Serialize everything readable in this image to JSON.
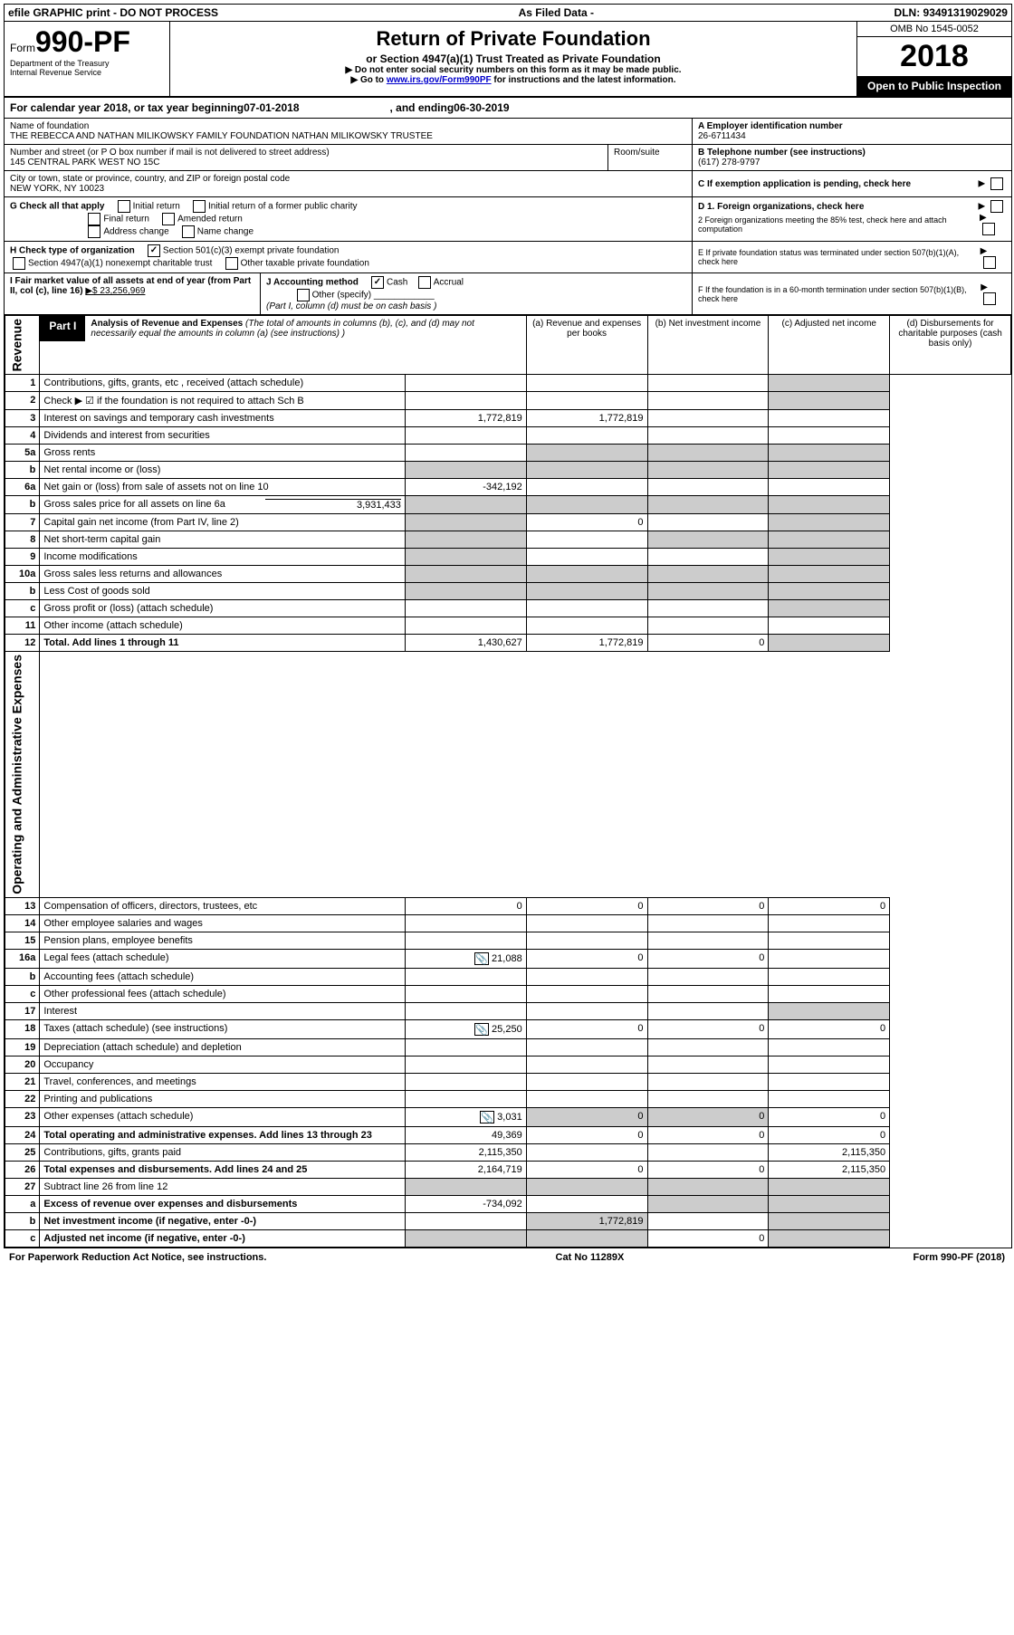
{
  "topbar": {
    "left": "efile GRAPHIC print - DO NOT PROCESS",
    "mid": "As Filed Data -",
    "right": "DLN: 93491319029029"
  },
  "header": {
    "form_prefix": "Form",
    "form_number": "990-PF",
    "dept": "Department of the Treasury",
    "irs": "Internal Revenue Service",
    "title": "Return of Private Foundation",
    "subtitle": "or Section 4947(a)(1) Trust Treated as Private Foundation",
    "note1": "▶ Do not enter social security numbers on this form as it may be made public.",
    "note2_pre": "▶ Go to ",
    "note2_link": "www.irs.gov/Form990PF",
    "note2_post": " for instructions and the latest information.",
    "omb": "OMB No 1545-0052",
    "year": "2018",
    "open": "Open to Public Inspection"
  },
  "calendar": {
    "text_pre": "For calendar year 2018, or tax year beginning ",
    "begin": "07-01-2018",
    "mid": " , and ending ",
    "end": "06-30-2019"
  },
  "entity": {
    "name_label": "Name of foundation",
    "name": "THE REBECCA AND NATHAN MILIKOWSKY FAMILY FOUNDATION NATHAN MILIKOWSKY TRUSTEE",
    "addr_label": "Number and street (or P O  box number if mail is not delivered to street address)",
    "room_label": "Room/suite",
    "addr": "145 CENTRAL PARK WEST NO 15C",
    "city_label": "City or town, state or province, country, and ZIP or foreign postal code",
    "city": "NEW YORK, NY  10023",
    "ein_label": "A Employer identification number",
    "ein": "26-6711434",
    "phone_label": "B Telephone number (see instructions)",
    "phone": "(617) 278-9797",
    "c_label": "C If exemption application is pending, check here",
    "g_label": "G Check all that apply",
    "g_opts": [
      "Initial return",
      "Initial return of a former public charity",
      "Final return",
      "Amended return",
      "Address change",
      "Name change"
    ],
    "d1": "D 1. Foreign organizations, check here",
    "d2": "2  Foreign organizations meeting the 85% test, check here and attach computation",
    "e": "E  If private foundation status was terminated under section 507(b)(1)(A), check here",
    "h_label": "H Check type of organization",
    "h_checked": "Section 501(c)(3) exempt private foundation",
    "h_opt2": "Section 4947(a)(1) nonexempt charitable trust",
    "h_opt3": "Other taxable private foundation",
    "f": "F  If the foundation is in a 60-month termination under section 507(b)(1)(B), check here",
    "i_label": "I Fair market value of all assets at end of year (from Part II, col  (c), line 16)",
    "i_value": "▶$  23,256,969",
    "j_label": "J Accounting method",
    "j_cash": "Cash",
    "j_accrual": "Accrual",
    "j_other": "Other (specify)",
    "j_note": "(Part I, column (d) must be on cash basis )"
  },
  "part1": {
    "label": "Part I",
    "title": "Analysis of Revenue and Expenses",
    "title_note": " (The total of amounts in columns (b), (c), and (d) may not necessarily equal the amounts in column (a) (see instructions) )",
    "col_a": "(a) Revenue and expenses per books",
    "col_b": "(b) Net investment income",
    "col_c": "(c) Adjusted net income",
    "col_d": "(d) Disbursements for charitable purposes (cash basis only)"
  },
  "rows": [
    {
      "n": "1",
      "desc": "Contributions, gifts, grants, etc , received (attach schedule)"
    },
    {
      "n": "2",
      "desc": "Check ▶ ☑ if the foundation is not required to attach Sch  B"
    },
    {
      "n": "3",
      "desc": "Interest on savings and temporary cash investments",
      "a": "1,772,819",
      "b": "1,772,819"
    },
    {
      "n": "4",
      "desc": "Dividends and interest from securities"
    },
    {
      "n": "5a",
      "desc": "Gross rents"
    },
    {
      "n": "b",
      "desc": "Net rental income or (loss)"
    },
    {
      "n": "6a",
      "desc": "Net gain or (loss) from sale of assets not on line 10",
      "a": "-342,192"
    },
    {
      "n": "b",
      "desc": "Gross sales price for all assets on line 6a",
      "inline": "3,931,433"
    },
    {
      "n": "7",
      "desc": "Capital gain net income (from Part IV, line 2)",
      "b": "0"
    },
    {
      "n": "8",
      "desc": "Net short-term capital gain"
    },
    {
      "n": "9",
      "desc": "Income modifications"
    },
    {
      "n": "10a",
      "desc": "Gross sales less returns and allowances"
    },
    {
      "n": "b",
      "desc": "Less  Cost of goods sold"
    },
    {
      "n": "c",
      "desc": "Gross profit or (loss) (attach schedule)"
    },
    {
      "n": "11",
      "desc": "Other income (attach schedule)"
    },
    {
      "n": "12",
      "desc": "Total. Add lines 1 through 11",
      "bold": true,
      "a": "1,430,627",
      "b": "1,772,819",
      "c": "0"
    }
  ],
  "exp_rows": [
    {
      "n": "13",
      "desc": "Compensation of officers, directors, trustees, etc",
      "a": "0",
      "b": "0",
      "c": "0",
      "d": "0"
    },
    {
      "n": "14",
      "desc": "Other employee salaries and wages"
    },
    {
      "n": "15",
      "desc": "Pension plans, employee benefits"
    },
    {
      "n": "16a",
      "desc": "Legal fees (attach schedule)",
      "icon": true,
      "a": "21,088",
      "b": "0",
      "c": "0"
    },
    {
      "n": "b",
      "desc": "Accounting fees (attach schedule)"
    },
    {
      "n": "c",
      "desc": "Other professional fees (attach schedule)"
    },
    {
      "n": "17",
      "desc": "Interest"
    },
    {
      "n": "18",
      "desc": "Taxes (attach schedule) (see instructions)",
      "icon": true,
      "a": "25,250",
      "b": "0",
      "c": "0",
      "d": "0"
    },
    {
      "n": "19",
      "desc": "Depreciation (attach schedule) and depletion"
    },
    {
      "n": "20",
      "desc": "Occupancy"
    },
    {
      "n": "21",
      "desc": "Travel, conferences, and meetings"
    },
    {
      "n": "22",
      "desc": "Printing and publications"
    },
    {
      "n": "23",
      "desc": "Other expenses (attach schedule)",
      "icon": true,
      "a": "3,031",
      "b": "0",
      "c": "0",
      "d": "0"
    },
    {
      "n": "24",
      "desc": "Total operating and administrative expenses. Add lines 13 through 23",
      "bold": true,
      "a": "49,369",
      "b": "0",
      "c": "0",
      "d": "0"
    },
    {
      "n": "25",
      "desc": "Contributions, gifts, grants paid",
      "a": "2,115,350",
      "d": "2,115,350"
    },
    {
      "n": "26",
      "desc": "Total expenses and disbursements. Add lines 24 and 25",
      "bold": true,
      "a": "2,164,719",
      "b": "0",
      "c": "0",
      "d": "2,115,350"
    },
    {
      "n": "27",
      "desc": "Subtract line 26 from line 12"
    },
    {
      "n": "a",
      "desc": "Excess of revenue over expenses and disbursements",
      "bold": true,
      "a": "-734,092"
    },
    {
      "n": "b",
      "desc": "Net investment income (if negative, enter -0-)",
      "bold": true,
      "b": "1,772,819"
    },
    {
      "n": "c",
      "desc": "Adjusted net income (if negative, enter -0-)",
      "bold": true,
      "c": "0"
    }
  ],
  "side_rev": "Revenue",
  "side_exp": "Operating and Administrative Expenses",
  "footer": {
    "left": "For Paperwork Reduction Act Notice, see instructions.",
    "mid": "Cat  No  11289X",
    "right": "Form 990-PF (2018)"
  }
}
